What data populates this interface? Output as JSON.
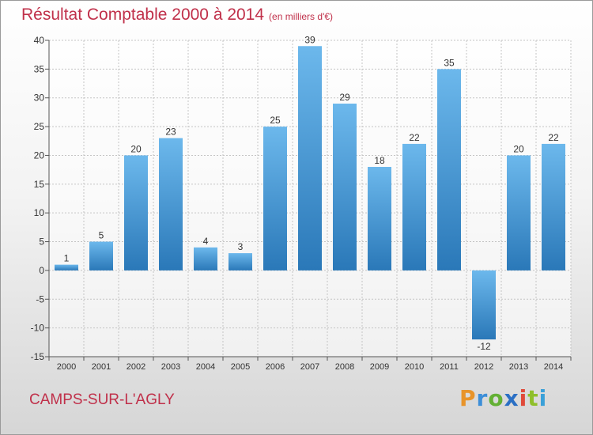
{
  "chart_data": {
    "type": "bar",
    "title": "Résultat Comptable 2000 à 2014",
    "subtitle": "(en milliers d'€)",
    "categories": [
      "2000",
      "2001",
      "2002",
      "2003",
      "2004",
      "2005",
      "2006",
      "2007",
      "2008",
      "2009",
      "2010",
      "2011",
      "2012",
      "2013",
      "2014"
    ],
    "values": [
      1,
      5,
      20,
      23,
      4,
      3,
      25,
      39,
      29,
      18,
      22,
      35,
      -12,
      20,
      22
    ],
    "ylim": [
      -15,
      40
    ],
    "yticks": [
      40,
      35,
      30,
      25,
      20,
      15,
      10,
      5,
      0,
      -5,
      -10,
      -15
    ],
    "ytick_labels": [
      "40",
      "35",
      "30",
      "25",
      "20",
      "15",
      "10",
      "5",
      "0",
      "-5",
      "-10",
      "-15"
    ],
    "xlabel": "",
    "ylabel": "",
    "grid": true,
    "bar_color_light": "#6cb8ec",
    "bar_color_dark": "#2a78b8",
    "title_color": "#c0304a"
  },
  "footer": {
    "city": "CAMPS-SUR-L'AGLY",
    "logo_letters": [
      "P",
      "r",
      "o",
      "x",
      "i",
      "t",
      "i"
    ]
  }
}
